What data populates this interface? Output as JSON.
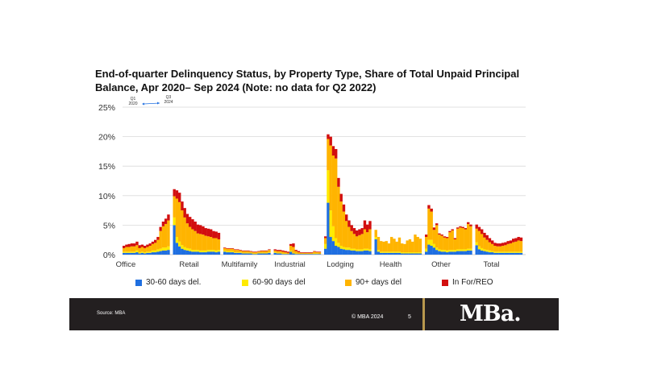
{
  "title": "End-of-quarter Delinquency Status, by Property Type, Share of Total Unpaid Principal Balance, Apr 2020– Sep 2024 (Note: no data for Q2 2022)",
  "annotation": {
    "start": "Q1\n2020",
    "end": "Q3\n2024"
  },
  "footer": {
    "source": "Source: MBA",
    "copyright": "© MBA 2024",
    "page": "5",
    "logo": "MBa."
  },
  "colors": {
    "del_30_60": "#1f6fe0",
    "del_60_90": "#ffea00",
    "del_90_plus": "#ffb400",
    "in_for_reo": "#d20f0f",
    "gridline": "#d9d9d9",
    "footer_bg": "#231f20",
    "gold": "#b8984e"
  },
  "chart_data": {
    "type": "bar",
    "stacked": true,
    "ylim": [
      0,
      25
    ],
    "yticks": [
      "0%",
      "5%",
      "10%",
      "15%",
      "20%",
      "25%"
    ],
    "grid": true,
    "legend_position": "bottom",
    "categories": [
      "Office",
      "Retail",
      "Multifamily",
      "Industrial",
      "Lodging",
      "Health",
      "Other",
      "Total"
    ],
    "series": [
      {
        "name": "30-60 days del.",
        "color": "#1f6fe0"
      },
      {
        "name": "60-90 days del",
        "color": "#ffea00"
      },
      {
        "name": "90+ days del",
        "color": "#ffb400"
      },
      {
        "name": "In For/REO",
        "color": "#d20f0f"
      }
    ],
    "groups": [
      {
        "label": "Office",
        "values": [
          [
            0.3,
            0.2,
            0.6,
            0.4
          ],
          [
            0.3,
            0.2,
            0.8,
            0.4
          ],
          [
            0.3,
            0.2,
            0.8,
            0.5
          ],
          [
            0.3,
            0.2,
            0.9,
            0.5
          ],
          [
            0.3,
            0.2,
            0.9,
            0.5
          ],
          [
            0.4,
            0.3,
            0.9,
            0.6
          ],
          [
            0.2,
            0.2,
            0.7,
            0.5
          ],
          [
            0.3,
            0.2,
            0.8,
            0.4
          ],
          [
            0.2,
            0.2,
            0.7,
            0.4
          ],
          [
            0.3,
            0.2,
            0.8,
            0.4
          ],
          [
            0.3,
            0.2,
            1.0,
            0.4
          ],
          [
            0.4,
            0.3,
            1.1,
            0.4
          ],
          [
            0.4,
            0.3,
            1.3,
            0.5
          ],
          [
            0.5,
            0.4,
            1.6,
            0.5
          ],
          [
            0.6,
            0.4,
            3.0,
            0.7
          ],
          [
            0.7,
            0.5,
            3.6,
            0.8
          ],
          [
            0.7,
            0.5,
            4.0,
            0.9
          ],
          [
            0.8,
            0.6,
            4.4,
            1.0
          ]
        ]
      },
      {
        "label": "Retail",
        "values": [
          [
            5.0,
            1.3,
            3.6,
            1.2
          ],
          [
            2.0,
            1.0,
            6.5,
            1.4
          ],
          [
            1.4,
            0.8,
            6.7,
            1.6
          ],
          [
            1.0,
            0.6,
            5.9,
            1.5
          ],
          [
            0.8,
            0.5,
            5.0,
            1.6
          ],
          [
            0.7,
            0.4,
            4.2,
            1.6
          ],
          [
            0.6,
            0.4,
            3.7,
            1.7
          ],
          [
            0.5,
            0.3,
            3.5,
            1.7
          ],
          [
            0.5,
            0.3,
            3.2,
            1.6
          ],
          [
            0.5,
            0.3,
            2.8,
            1.5
          ],
          [
            0.4,
            0.3,
            2.8,
            1.5
          ],
          [
            0.4,
            0.3,
            2.7,
            1.4
          ],
          [
            0.4,
            0.3,
            2.5,
            1.3
          ],
          [
            0.5,
            0.3,
            2.3,
            1.3
          ],
          [
            0.5,
            0.3,
            2.2,
            1.3
          ],
          [
            0.5,
            0.3,
            2.0,
            1.2
          ],
          [
            0.4,
            0.3,
            2.1,
            1.1
          ],
          [
            0.5,
            0.3,
            1.8,
            1.1
          ]
        ]
      },
      {
        "label": "Multifamily",
        "values": [
          [
            0.5,
            0.2,
            0.4,
            0.1
          ],
          [
            0.4,
            0.2,
            0.4,
            0.1
          ],
          [
            0.4,
            0.2,
            0.4,
            0.1
          ],
          [
            0.4,
            0.2,
            0.4,
            0.1
          ],
          [
            0.3,
            0.1,
            0.4,
            0.1
          ],
          [
            0.3,
            0.1,
            0.4,
            0.1
          ],
          [
            0.3,
            0.1,
            0.3,
            0.1
          ],
          [
            0.2,
            0.1,
            0.3,
            0.1
          ],
          [
            0.2,
            0.1,
            0.3,
            0.1
          ],
          [
            0.2,
            0.1,
            0.3,
            0.1
          ],
          [
            0.2,
            0.1,
            0.2,
            0.1
          ],
          [
            0.1,
            0.1,
            0.2,
            0.1
          ],
          [
            0.1,
            0.1,
            0.2,
            0.1
          ],
          [
            0.2,
            0.1,
            0.2,
            0.1
          ],
          [
            0.2,
            0.1,
            0.3,
            0.1
          ],
          [
            0.2,
            0.1,
            0.3,
            0.1
          ],
          [
            0.2,
            0.1,
            0.3,
            0.1
          ],
          [
            0.3,
            0.1,
            0.4,
            0.1
          ]
        ]
      },
      {
        "label": "Industrial",
        "values": [
          [
            0.3,
            0.1,
            0.3,
            0.2
          ],
          [
            0.2,
            0.1,
            0.3,
            0.2
          ],
          [
            0.2,
            0.1,
            0.3,
            0.2
          ],
          [
            0.1,
            0.1,
            0.3,
            0.2
          ],
          [
            0.1,
            0.1,
            0.2,
            0.2
          ],
          [
            0.1,
            0.0,
            0.2,
            0.2
          ],
          [
            0.5,
            0.2,
            0.8,
            0.3
          ],
          [
            0.2,
            0.1,
            1.0,
            0.6
          ],
          [
            0.1,
            0.1,
            0.4,
            0.2
          ],
          [
            0.1,
            0.0,
            0.3,
            0.2
          ],
          [
            0.1,
            0.0,
            0.2,
            0.1
          ],
          [
            0.1,
            0.0,
            0.2,
            0.1
          ],
          [
            0.1,
            0.0,
            0.2,
            0.1
          ],
          [
            0.1,
            0.0,
            0.2,
            0.1
          ],
          [
            0.1,
            0.0,
            0.2,
            0.1
          ],
          [
            0.1,
            0.1,
            0.3,
            0.1
          ],
          [
            0.1,
            0.1,
            0.2,
            0.1
          ],
          [
            0.1,
            0.0,
            0.3,
            0.1
          ]
        ]
      },
      {
        "label": "Lodging",
        "values": [
          [
            1.0,
            0.8,
            1.0,
            0.3
          ],
          [
            8.8,
            5.5,
            5.3,
            0.8
          ],
          [
            3.0,
            4.5,
            11.0,
            1.5
          ],
          [
            2.3,
            2.5,
            12.0,
            1.6
          ],
          [
            1.5,
            1.3,
            13.5,
            1.6
          ],
          [
            1.3,
            0.7,
            9.5,
            1.5
          ],
          [
            1.0,
            0.5,
            7.5,
            1.3
          ],
          [
            0.9,
            0.4,
            6.0,
            1.2
          ],
          [
            0.8,
            0.4,
            4.5,
            1.1
          ],
          [
            0.8,
            0.4,
            3.5,
            1.1
          ],
          [
            0.7,
            0.3,
            3.0,
            1.0
          ],
          [
            0.7,
            0.3,
            2.5,
            1.0
          ],
          [
            0.6,
            0.3,
            2.2,
            1.0
          ],
          [
            0.6,
            0.3,
            2.4,
            1.0
          ],
          [
            0.6,
            0.3,
            2.6,
            1.0
          ],
          [
            0.7,
            0.3,
            3.3,
            1.5
          ],
          [
            0.7,
            0.3,
            2.8,
            1.3
          ],
          [
            0.6,
            0.3,
            3.4,
            1.4
          ]
        ]
      },
      {
        "label": "Health",
        "values": [
          [
            2.6,
            0.4,
            1.2,
            0.0
          ],
          [
            0.5,
            0.3,
            2.2,
            0.0
          ],
          [
            0.3,
            0.2,
            1.8,
            0.0
          ],
          [
            0.3,
            0.2,
            1.7,
            0.0
          ],
          [
            0.3,
            0.2,
            1.8,
            0.0
          ],
          [
            0.3,
            0.2,
            1.4,
            0.0
          ],
          [
            0.3,
            0.2,
            2.5,
            0.0
          ],
          [
            0.3,
            0.2,
            2.2,
            0.0
          ],
          [
            0.3,
            0.2,
            1.7,
            0.0
          ],
          [
            0.3,
            0.2,
            2.4,
            0.0
          ],
          [
            0.2,
            0.2,
            1.5,
            0.0
          ],
          [
            0.2,
            0.2,
            1.4,
            0.0
          ],
          [
            0.2,
            0.2,
            2.0,
            0.0
          ],
          [
            0.2,
            0.2,
            2.2,
            0.0
          ],
          [
            0.2,
            0.2,
            1.8,
            0.0
          ],
          [
            0.2,
            0.2,
            3.0,
            0.0
          ],
          [
            0.2,
            0.2,
            2.6,
            0.0
          ],
          [
            0.2,
            0.2,
            2.3,
            0.0
          ]
        ]
      },
      {
        "label": "Other",
        "values": [
          [
            0.5,
            0.5,
            2.0,
            0.4
          ],
          [
            1.7,
            0.8,
            5.3,
            0.6
          ],
          [
            1.5,
            1.0,
            4.8,
            0.5
          ],
          [
            1.2,
            0.6,
            2.4,
            0.4
          ],
          [
            0.8,
            0.4,
            3.8,
            0.3
          ],
          [
            0.6,
            0.3,
            2.5,
            0.2
          ],
          [
            0.5,
            0.3,
            2.4,
            0.2
          ],
          [
            0.5,
            0.3,
            2.1,
            0.2
          ],
          [
            0.4,
            0.3,
            2.1,
            0.2
          ],
          [
            0.5,
            0.3,
            3.0,
            0.2
          ],
          [
            0.5,
            0.3,
            3.3,
            0.2
          ],
          [
            0.5,
            0.3,
            1.8,
            0.2
          ],
          [
            0.6,
            0.3,
            3.5,
            0.2
          ],
          [
            0.6,
            0.3,
            3.7,
            0.2
          ],
          [
            0.6,
            0.3,
            3.6,
            0.2
          ],
          [
            0.6,
            0.3,
            3.4,
            0.2
          ],
          [
            0.7,
            0.3,
            4.2,
            0.3
          ],
          [
            0.7,
            0.3,
            3.8,
            0.3
          ]
        ]
      },
      {
        "label": "Total",
        "values": [
          [
            1.6,
            0.5,
            2.3,
            0.7
          ],
          [
            0.9,
            0.5,
            2.6,
            0.7
          ],
          [
            0.7,
            0.4,
            2.4,
            0.8
          ],
          [
            0.6,
            0.3,
            2.0,
            0.8
          ],
          [
            0.5,
            0.3,
            1.7,
            0.8
          ],
          [
            0.4,
            0.3,
            1.4,
            0.7
          ],
          [
            0.4,
            0.2,
            1.2,
            0.6
          ],
          [
            0.3,
            0.2,
            1.0,
            0.5
          ],
          [
            0.3,
            0.2,
            0.9,
            0.5
          ],
          [
            0.3,
            0.2,
            0.9,
            0.5
          ],
          [
            0.3,
            0.2,
            1.0,
            0.5
          ],
          [
            0.3,
            0.2,
            1.1,
            0.5
          ],
          [
            0.3,
            0.2,
            1.3,
            0.5
          ],
          [
            0.3,
            0.2,
            1.4,
            0.5
          ],
          [
            0.3,
            0.2,
            1.6,
            0.6
          ],
          [
            0.3,
            0.2,
            1.7,
            0.6
          ],
          [
            0.3,
            0.2,
            1.9,
            0.6
          ],
          [
            0.3,
            0.2,
            1.8,
            0.6
          ]
        ]
      }
    ]
  }
}
